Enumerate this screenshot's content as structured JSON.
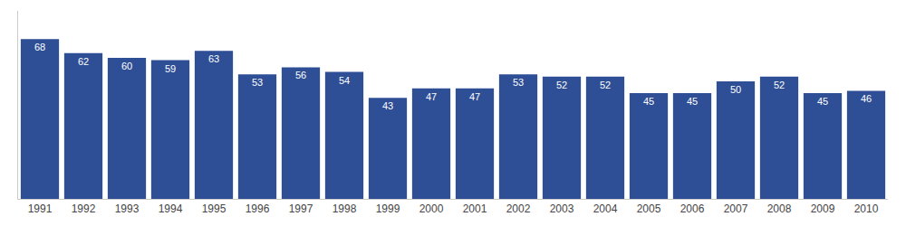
{
  "chart_data": {
    "type": "bar",
    "categories": [
      "1991",
      "1992",
      "1993",
      "1994",
      "1995",
      "1996",
      "1997",
      "1998",
      "1999",
      "2000",
      "2001",
      "2002",
      "2003",
      "2004",
      "2005",
      "2006",
      "2007",
      "2008",
      "2009",
      "2010"
    ],
    "values": [
      68,
      62,
      60,
      59,
      63,
      53,
      56,
      54,
      43,
      47,
      47,
      53,
      52,
      52,
      45,
      45,
      50,
      52,
      45,
      46
    ],
    "color": "#2e4e96",
    "ylim": [
      0,
      80
    ],
    "grid": false,
    "data_labels": true,
    "tick_labels": "x"
  }
}
